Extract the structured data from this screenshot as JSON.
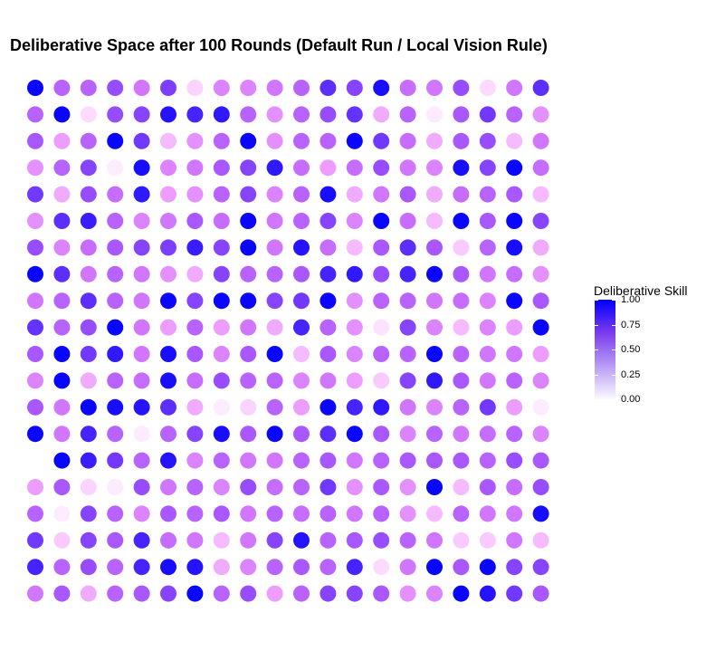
{
  "chart_data": {
    "type": "scatter",
    "title": "Deliberative Space after 100 Rounds (Default Run / Local Vision Rule)",
    "xlabel": "",
    "ylabel": "",
    "grid": false,
    "legend_position": "right",
    "color_scale": {
      "name": "Deliberative Skill",
      "low_color": "#ffffff",
      "high_color": "#0000ff",
      "limits": [
        0,
        1
      ],
      "breaks": [
        1.0,
        0.75,
        0.5,
        0.25,
        0.0
      ],
      "break_labels": [
        "1.00",
        "0.75",
        "0.50",
        "0.25",
        "0.00"
      ]
    },
    "rows": 20,
    "cols": 20,
    "values": [
      [
        0.98,
        0.55,
        0.55,
        0.65,
        0.45,
        0.72,
        0.12,
        0.4,
        0.4,
        0.45,
        0.55,
        0.8,
        0.7,
        0.95,
        0.5,
        0.45,
        0.65,
        0.1,
        0.45,
        0.8
      ],
      [
        0.55,
        0.98,
        0.1,
        0.65,
        0.7,
        0.92,
        0.85,
        0.9,
        0.55,
        0.35,
        0.55,
        0.65,
        0.78,
        0.25,
        0.55,
        0.05,
        0.6,
        0.75,
        0.55,
        0.35
      ],
      [
        0.6,
        0.3,
        0.55,
        0.98,
        0.75,
        0.2,
        0.35,
        0.55,
        0.98,
        0.35,
        0.55,
        0.55,
        0.98,
        0.75,
        0.5,
        0.25,
        0.6,
        0.65,
        0.2,
        0.45
      ],
      [
        0.35,
        0.55,
        0.7,
        0.05,
        0.95,
        0.4,
        0.45,
        0.6,
        0.7,
        0.9,
        0.5,
        0.3,
        0.5,
        0.65,
        0.45,
        0.4,
        0.95,
        0.7,
        0.98,
        0.5
      ],
      [
        0.75,
        0.25,
        0.65,
        0.5,
        0.9,
        0.3,
        0.35,
        0.55,
        0.7,
        0.4,
        0.55,
        0.95,
        0.25,
        0.45,
        0.6,
        0.25,
        0.5,
        0.55,
        0.6,
        0.2
      ],
      [
        0.35,
        0.8,
        0.88,
        0.55,
        0.4,
        0.45,
        0.6,
        0.5,
        0.98,
        0.45,
        0.55,
        0.7,
        0.4,
        0.98,
        0.5,
        0.2,
        0.98,
        0.6,
        0.98,
        0.7
      ],
      [
        0.65,
        0.4,
        0.5,
        0.6,
        0.7,
        0.72,
        0.88,
        0.7,
        0.98,
        0.45,
        0.92,
        0.5,
        0.2,
        0.6,
        0.8,
        0.6,
        0.15,
        0.55,
        0.95,
        0.25
      ],
      [
        0.98,
        0.8,
        0.45,
        0.55,
        0.45,
        0.35,
        0.25,
        0.7,
        0.55,
        0.55,
        0.6,
        0.85,
        0.9,
        0.65,
        0.85,
        0.98,
        0.6,
        0.45,
        0.5,
        0.35
      ],
      [
        0.45,
        0.55,
        0.8,
        0.55,
        0.45,
        0.98,
        0.7,
        0.98,
        0.98,
        0.7,
        0.75,
        0.98,
        0.35,
        0.55,
        0.55,
        0.45,
        0.5,
        0.4,
        0.98,
        0.6
      ],
      [
        0.78,
        0.55,
        0.65,
        0.98,
        0.45,
        0.3,
        0.55,
        0.3,
        0.45,
        0.25,
        0.85,
        0.55,
        0.35,
        0.08,
        0.7,
        0.4,
        0.2,
        0.4,
        0.3,
        0.98
      ],
      [
        0.6,
        0.98,
        0.75,
        0.9,
        0.45,
        0.95,
        0.6,
        0.4,
        0.6,
        0.98,
        0.2,
        0.6,
        0.4,
        0.55,
        0.55,
        0.98,
        0.55,
        0.45,
        0.45,
        0.3
      ],
      [
        0.4,
        0.98,
        0.25,
        0.55,
        0.5,
        0.95,
        0.5,
        0.65,
        0.55,
        0.55,
        0.4,
        0.45,
        0.3,
        0.15,
        0.7,
        0.9,
        0.6,
        0.45,
        0.55,
        0.4
      ],
      [
        0.6,
        0.45,
        0.98,
        0.95,
        0.92,
        0.8,
        0.25,
        0.05,
        0.12,
        0.55,
        0.3,
        0.98,
        0.85,
        0.9,
        0.45,
        0.4,
        0.55,
        0.75,
        0.3,
        0.05
      ],
      [
        0.98,
        0.45,
        0.85,
        0.55,
        0.05,
        0.55,
        0.7,
        0.95,
        0.6,
        0.98,
        0.6,
        0.8,
        0.98,
        0.6,
        0.4,
        0.55,
        0.45,
        0.5,
        0.55,
        0.4
      ],
      [
        0.0,
        0.98,
        0.88,
        0.75,
        0.55,
        0.92,
        0.4,
        0.55,
        0.45,
        0.45,
        0.55,
        0.6,
        0.45,
        0.55,
        0.6,
        0.6,
        0.6,
        0.55,
        0.65,
        0.6
      ],
      [
        0.3,
        0.6,
        0.12,
        0.05,
        0.65,
        0.45,
        0.55,
        0.4,
        0.65,
        0.5,
        0.55,
        0.75,
        0.35,
        0.6,
        0.35,
        0.98,
        0.2,
        0.6,
        0.5,
        0.65
      ],
      [
        0.55,
        0.05,
        0.7,
        0.55,
        0.4,
        0.6,
        0.55,
        0.6,
        0.45,
        0.55,
        0.5,
        0.55,
        0.45,
        0.55,
        0.35,
        0.2,
        0.55,
        0.45,
        0.45,
        0.95
      ],
      [
        0.75,
        0.15,
        0.7,
        0.6,
        0.85,
        0.5,
        0.45,
        0.2,
        0.45,
        0.7,
        0.92,
        0.55,
        0.6,
        0.65,
        0.55,
        0.45,
        0.15,
        0.15,
        0.45,
        0.2
      ],
      [
        0.85,
        0.55,
        0.65,
        0.55,
        0.85,
        0.95,
        0.92,
        0.25,
        0.4,
        0.55,
        0.6,
        0.55,
        0.85,
        0.1,
        0.45,
        0.98,
        0.6,
        0.98,
        0.7,
        0.7
      ],
      [
        0.45,
        0.6,
        0.25,
        0.55,
        0.6,
        0.7,
        0.98,
        0.55,
        0.65,
        0.3,
        0.55,
        0.7,
        0.7,
        0.6,
        0.35,
        0.4,
        0.98,
        0.92,
        0.75,
        0.6
      ]
    ]
  }
}
